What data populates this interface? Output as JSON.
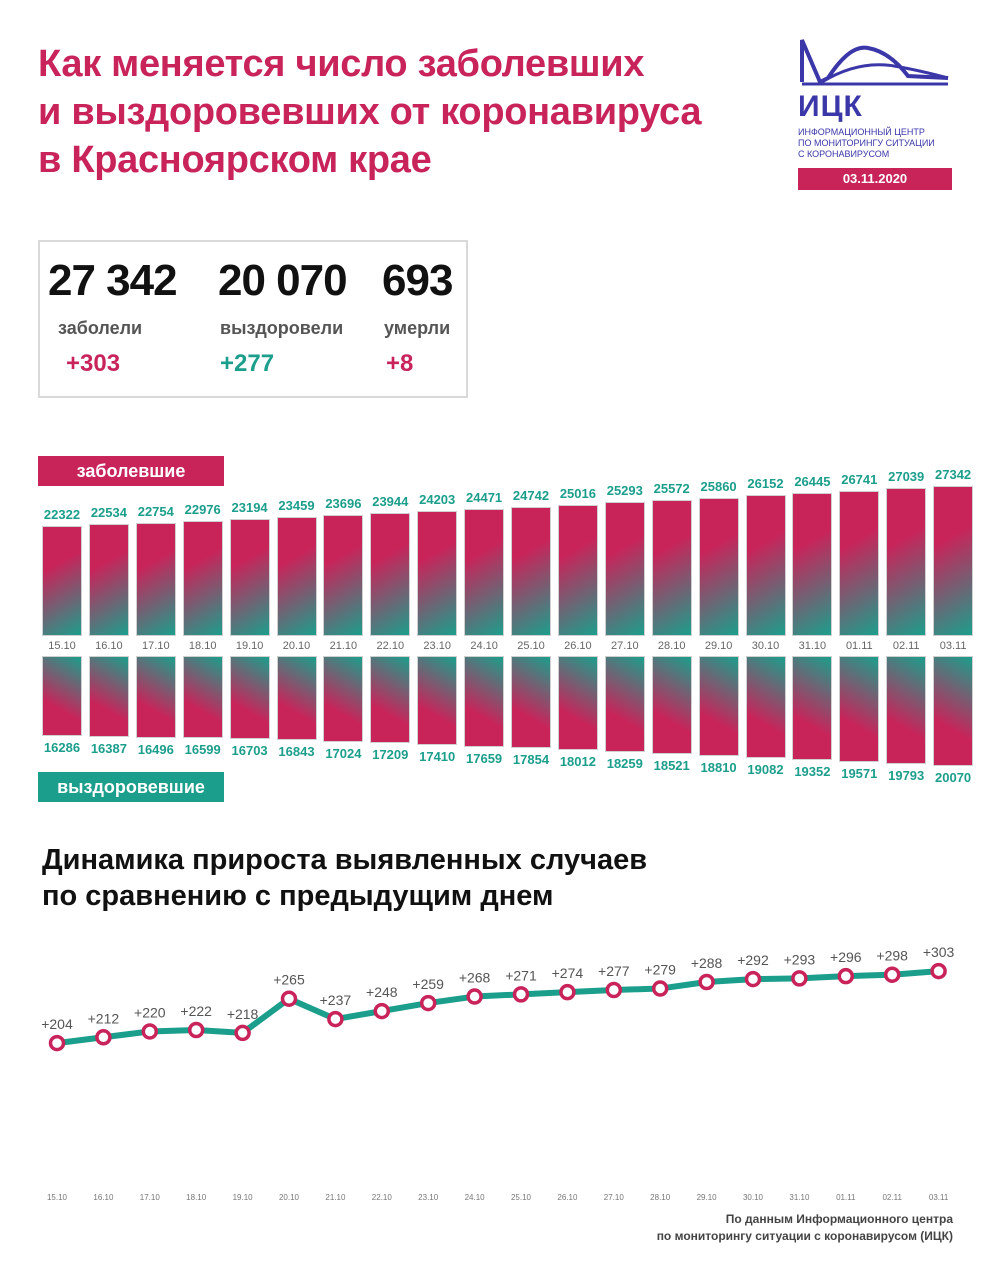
{
  "header": {
    "title": "Как меняется число заболевших\nи выздоровевших от коронавируса\nв Красноярском крае"
  },
  "logo": {
    "name": "ИЦК",
    "subtitle": "Информационный центр\nпо мониторингу ситуации\nс коронавирусом",
    "date": "03.11.2020",
    "colors": {
      "primary": "#3b37a8",
      "accent": "#c8245a"
    }
  },
  "stats": [
    {
      "value": "27 342",
      "label": "заболели",
      "delta": "+303",
      "delta_color": "#c8245a"
    },
    {
      "value": "20 070",
      "label": "выздоровели",
      "delta": "+277",
      "delta_color": "#1c9e8c"
    },
    {
      "value": "693",
      "label": "умерли",
      "delta": "+8",
      "delta_color": "#c8245a"
    }
  ],
  "bands": {
    "sick": "заболевшие",
    "recovered": "выздоровевшие"
  },
  "subtitle": "Динамика прироста выявленных случаев\nпо сравнению с предыдущим днем",
  "source": "По данным Информационного центра\nпо мониторингу ситуации с коронавирусом (ИЦК)",
  "chart_data": [
    {
      "type": "bar",
      "categories": [
        "15.10",
        "16.10",
        "17.10",
        "18.10",
        "19.10",
        "20.10",
        "21.10",
        "22.10",
        "23.10",
        "24.10",
        "25.10",
        "26.10",
        "27.10",
        "28.10",
        "29.10",
        "30.10",
        "31.10",
        "01.11",
        "02.11",
        "03.11"
      ],
      "series": [
        {
          "name": "заболевшие",
          "values": [
            22322,
            22534,
            22754,
            22976,
            23194,
            23459,
            23696,
            23944,
            24203,
            24471,
            24742,
            25016,
            25293,
            25572,
            25860,
            26152,
            26445,
            26741,
            27039,
            27342
          ]
        },
        {
          "name": "выздоровевшие",
          "values": [
            16286,
            16387,
            16496,
            16599,
            16703,
            16843,
            17024,
            17209,
            17410,
            17659,
            17854,
            18012,
            18259,
            18521,
            18810,
            19082,
            19352,
            19571,
            19793,
            20070
          ]
        }
      ],
      "colors": {
        "sick": "#c8245a",
        "recovered": "#1c9e8c"
      }
    },
    {
      "type": "line",
      "x": [
        "15.10",
        "16.10",
        "17.10",
        "18.10",
        "19.10",
        "20.10",
        "21.10",
        "22.10",
        "23.10",
        "24.10",
        "25.10",
        "26.10",
        "27.10",
        "28.10",
        "29.10",
        "30.10",
        "31.10",
        "01.11",
        "02.11",
        "03.11"
      ],
      "values": [
        204,
        212,
        220,
        222,
        218,
        265,
        237,
        248,
        259,
        268,
        271,
        274,
        277,
        279,
        288,
        292,
        293,
        296,
        298,
        303
      ],
      "labels": [
        "+204",
        "+212",
        "+220",
        "+222",
        "+218",
        "+265",
        "+237",
        "+248",
        "+259",
        "+268",
        "+271",
        "+274",
        "+277",
        "+279",
        "+288",
        "+292",
        "+293",
        "+296",
        "+298",
        "+303"
      ],
      "colors": {
        "line": "#1c9e8c",
        "marker": "#c8245a"
      }
    }
  ]
}
